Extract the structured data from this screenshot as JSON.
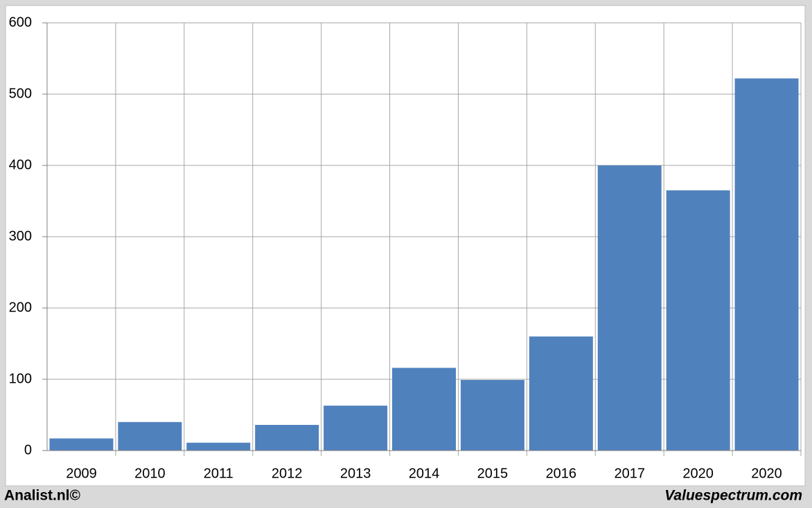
{
  "chart_data": {
    "type": "bar",
    "categories": [
      "2009",
      "2010",
      "2011",
      "2012",
      "2013",
      "2014",
      "2015",
      "2016",
      "2017",
      "2020",
      "2020"
    ],
    "values": [
      17,
      40,
      11,
      36,
      63,
      116,
      99,
      160,
      400,
      365,
      522
    ],
    "color": "#4f81bd",
    "ylim": [
      0,
      600
    ],
    "yticks": [
      0,
      100,
      200,
      300,
      400,
      500,
      600
    ],
    "grid": true
  },
  "footer": {
    "left": "Analist.nl©",
    "right": "Valuespectrum.com"
  }
}
